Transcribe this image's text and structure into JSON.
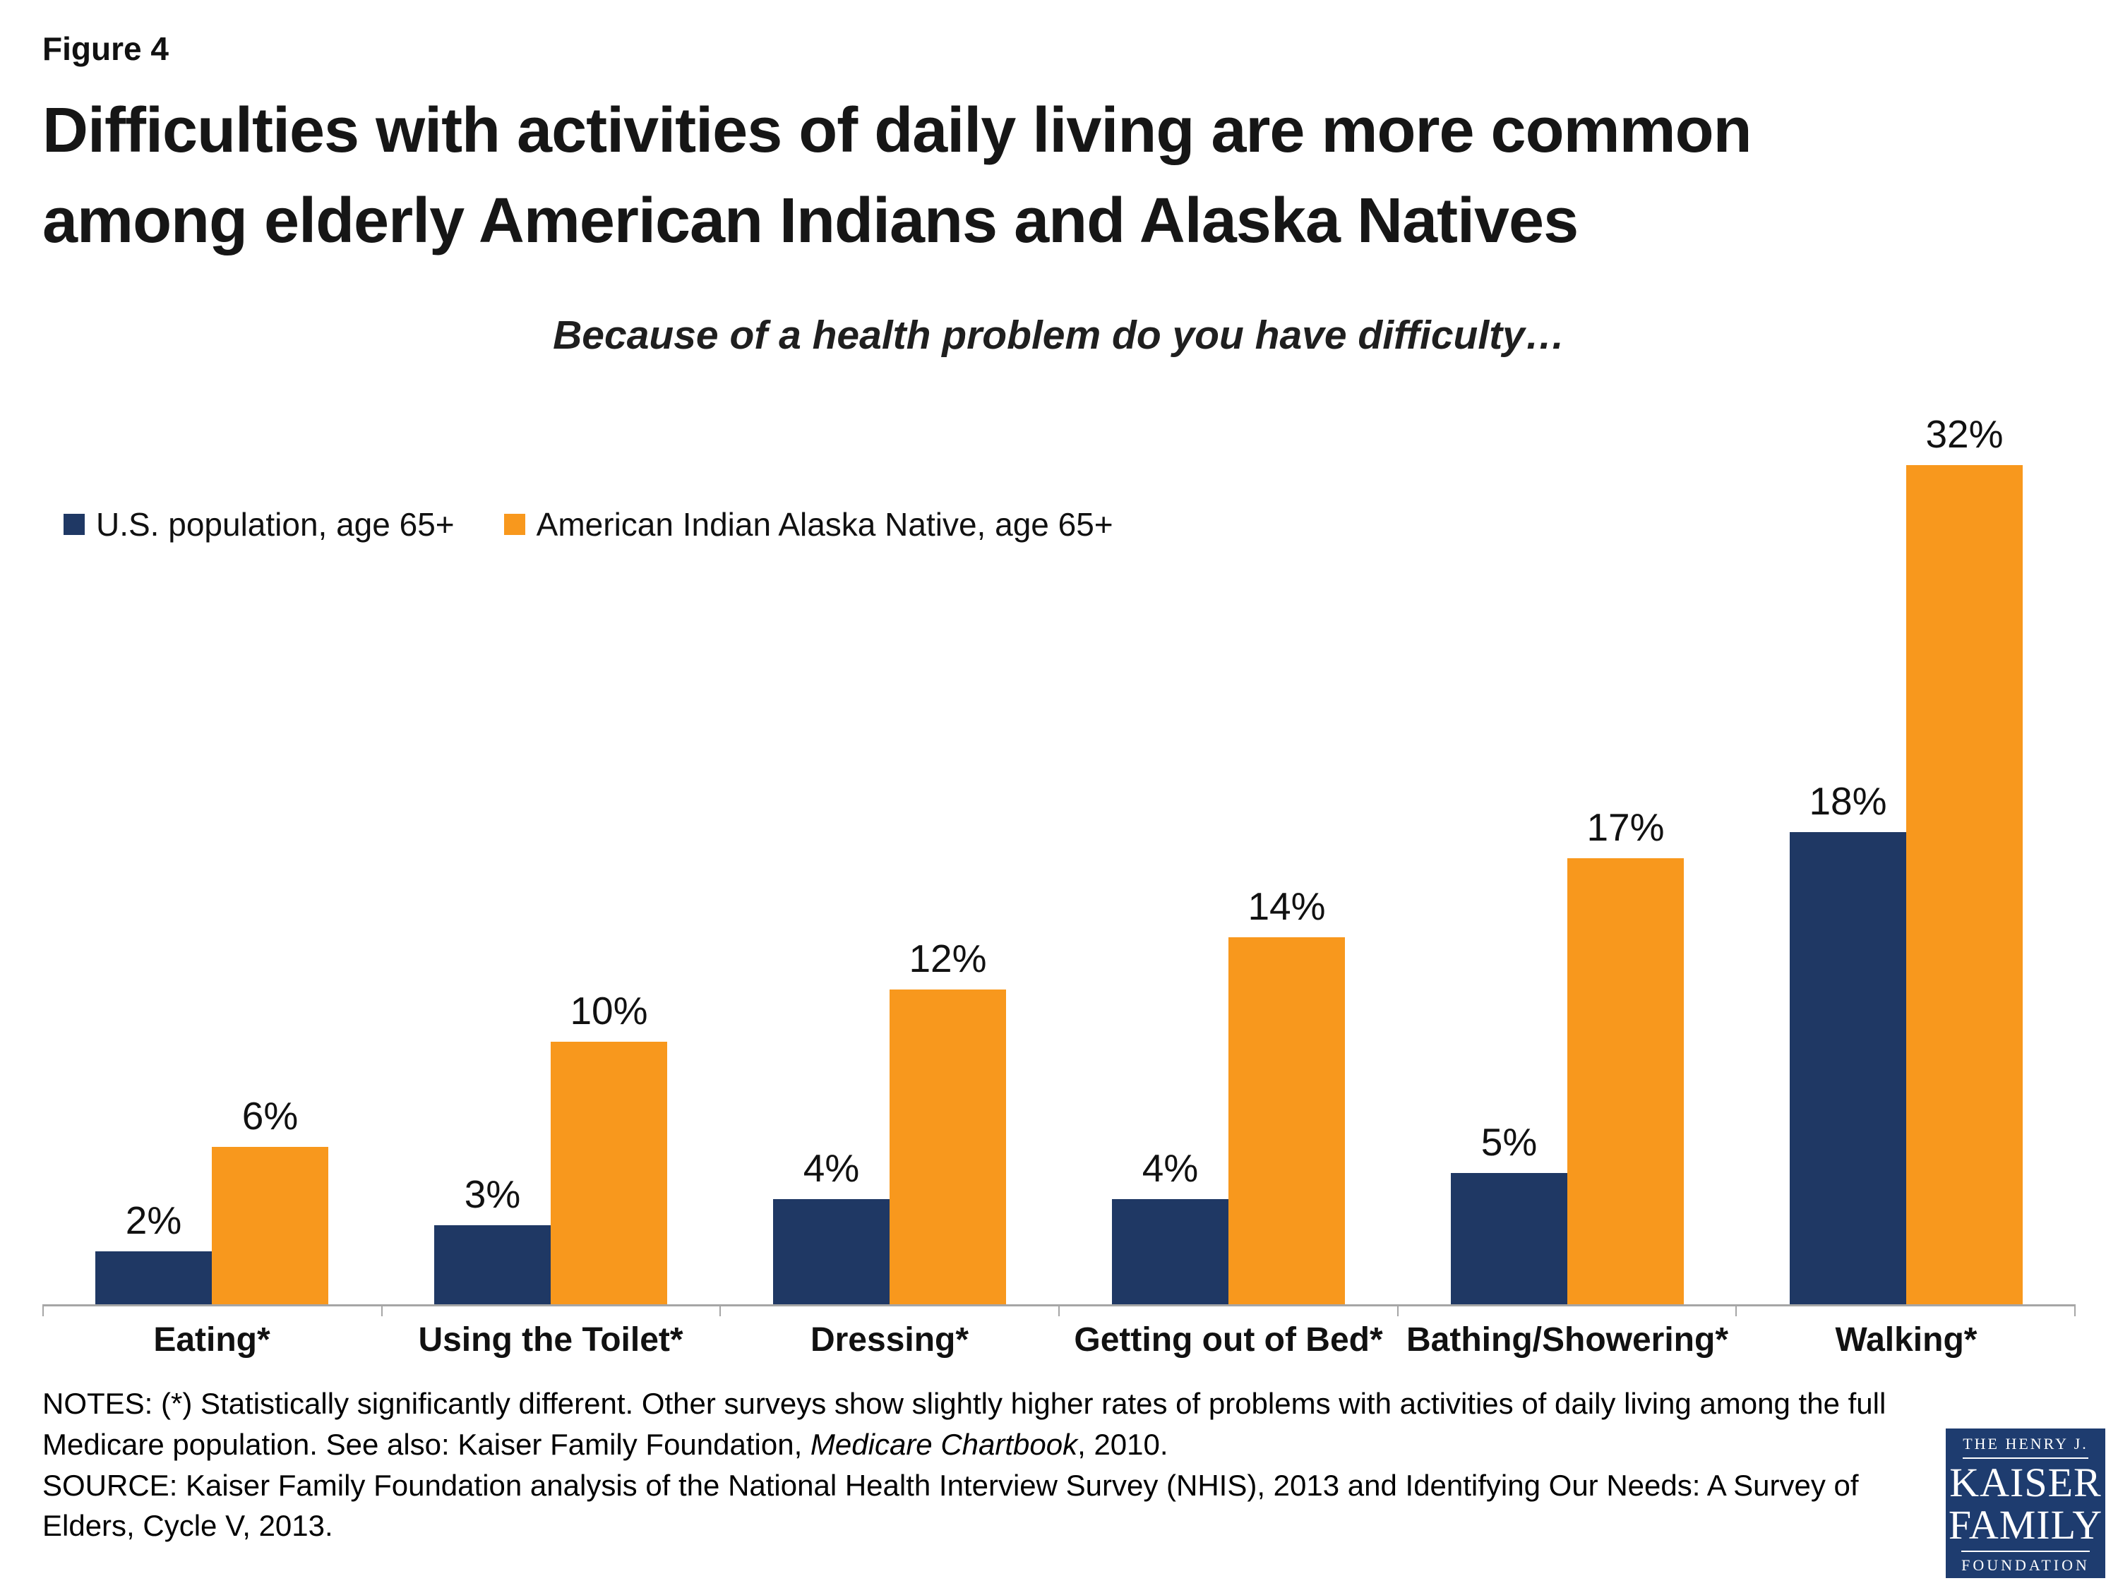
{
  "figure_label": "Figure 4",
  "title_line1": "Difficulties with activities of daily living are more common",
  "title_line2": "among elderly American Indians and Alaska Natives",
  "subtitle": "Because of a health problem do you have difficulty…",
  "colors": {
    "us_series": "#1f3864",
    "aian_series": "#f8981d",
    "axis": "#a6a6a6",
    "logo_bg": "#1e3c6f"
  },
  "legend": [
    {
      "label": "U.S. population, age 65+",
      "color": "#1f3864"
    },
    {
      "label": "American Indian Alaska Native, age 65+",
      "color": "#f8981d"
    }
  ],
  "chart_data": {
    "type": "bar",
    "categories": [
      "Eating*",
      "Using the Toilet*",
      "Dressing*",
      "Getting out of Bed*",
      "Bathing/Showering*",
      "Walking*"
    ],
    "series": [
      {
        "name": "U.S. population, age 65+",
        "key": "us",
        "color": "#1f3864",
        "values": [
          2,
          3,
          4,
          4,
          5,
          18
        ]
      },
      {
        "name": "American Indian Alaska Native, age 65+",
        "key": "aian",
        "color": "#f8981d",
        "values": [
          6,
          10,
          12,
          14,
          17,
          32
        ]
      }
    ],
    "value_suffix": "%",
    "title": "Because of a health problem do you have difficulty…",
    "xlabel": "",
    "ylabel": "",
    "ylim": [
      0,
      35
    ],
    "grid": false,
    "legend_position": "top-left",
    "value_labels_shown": true
  },
  "notes": {
    "line1_part1": "NOTES: (*) Statistically significantly different. Other surveys show slightly higher rates of problems with activities of daily living among the full Medicare population.  See also: Kaiser Family Foundation, ",
    "line1_italic": "Medicare Chartbook",
    "line1_part2": ", 2010.",
    "source": "SOURCE: Kaiser Family Foundation analysis of the National Health Interview Survey (NHIS), 2013 and Identifying Our Needs: A Survey of Elders, Cycle V, 2013."
  },
  "logo": {
    "top": "THE HENRY J.",
    "line1": "KAISER",
    "line2": "FAMILY",
    "bottom": "FOUNDATION"
  }
}
